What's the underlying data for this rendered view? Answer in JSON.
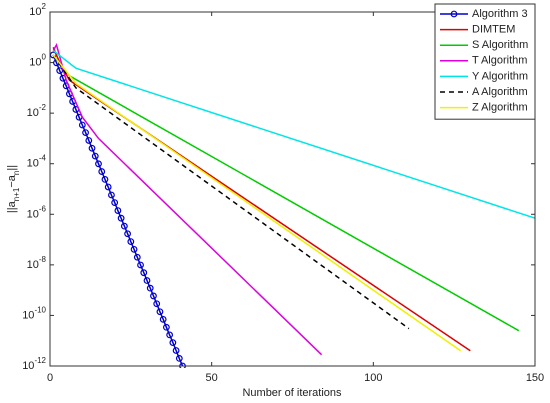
{
  "chart_data": {
    "type": "line",
    "xlabel": "Number of iterations",
    "ylabel": "||a_{n+1}−a_n||",
    "xlim": [
      0,
      150
    ],
    "xticks": [
      0,
      50,
      100,
      150
    ],
    "ylim": [
      1e-12,
      100
    ],
    "log_y": true,
    "yticks": [
      {
        "value": 1e-12,
        "label": "10^-12"
      },
      {
        "value": 1e-10,
        "label": "10^-10"
      },
      {
        "value": 1e-08,
        "label": "10^-8"
      },
      {
        "value": 1e-06,
        "label": "10^-6"
      },
      {
        "value": 0.0001,
        "label": "10^-4"
      },
      {
        "value": 0.01,
        "label": "10^-2"
      },
      {
        "value": 1,
        "label": "10^0"
      },
      {
        "value": 100,
        "label": "10^2"
      }
    ],
    "grid": false,
    "legend": "upper right",
    "series": [
      {
        "name": "Algorithm 3",
        "color": "#0000cc",
        "marker": "o",
        "x": [
          1,
          2,
          3,
          4,
          5,
          6,
          7,
          8,
          9,
          10,
          11,
          12,
          13,
          14,
          15,
          16,
          17,
          18,
          19,
          20,
          21,
          22,
          23,
          24,
          25,
          26,
          27,
          28,
          29,
          30,
          31,
          32,
          33,
          34,
          35,
          36,
          37,
          38,
          39,
          40,
          41
        ],
        "values": [
          2.0,
          0.98,
          0.48,
          0.24,
          0.12,
          0.058,
          0.029,
          0.014,
          0.0069,
          0.0034,
          0.0017,
          0.00083,
          0.00041,
          0.0002,
          9.9e-05,
          4.9e-05,
          2.4e-05,
          1.2e-05,
          5.8e-06,
          2.9e-06,
          1.4e-06,
          7e-07,
          3.4e-07,
          1.7e-07,
          8.3e-08,
          4.1e-08,
          2e-08,
          9.9e-09,
          4.9e-09,
          2.4e-09,
          1.2e-09,
          5.9e-10,
          2.9e-10,
          1.4e-10,
          7e-11,
          3.4e-11,
          1.7e-11,
          8.4e-12,
          4.1e-12,
          2e-12,
          1e-12
        ]
      },
      {
        "name": "DIMTEM",
        "color": "#dd0000",
        "x": [
          1,
          3,
          6,
          130
        ],
        "values": [
          4,
          1.0,
          0.2,
          4e-12
        ]
      },
      {
        "name": "S Algorithm",
        "color": "#00cc00",
        "x": [
          1,
          6,
          145
        ],
        "values": [
          2,
          0.3,
          2.5e-11
        ]
      },
      {
        "name": "T Algorithm",
        "color": "#dd00dd",
        "x": [
          1,
          2,
          5,
          10,
          15,
          84
        ],
        "values": [
          3,
          5,
          0.2,
          0.007,
          0.001,
          2.8e-12
        ]
      },
      {
        "name": "Y Algorithm",
        "color": "#00e5e5",
        "x": [
          1,
          8,
          150
        ],
        "values": [
          3,
          0.6,
          7e-07
        ]
      },
      {
        "name": "A Algorithm",
        "color": "#000000",
        "dash": true,
        "x": [
          1,
          8,
          111
        ],
        "values": [
          2,
          0.1,
          3e-11
        ]
      },
      {
        "name": "Z Algorithm",
        "color": "#f0f000",
        "x": [
          1,
          8,
          127
        ],
        "values": [
          2,
          0.15,
          4e-12
        ]
      }
    ]
  }
}
